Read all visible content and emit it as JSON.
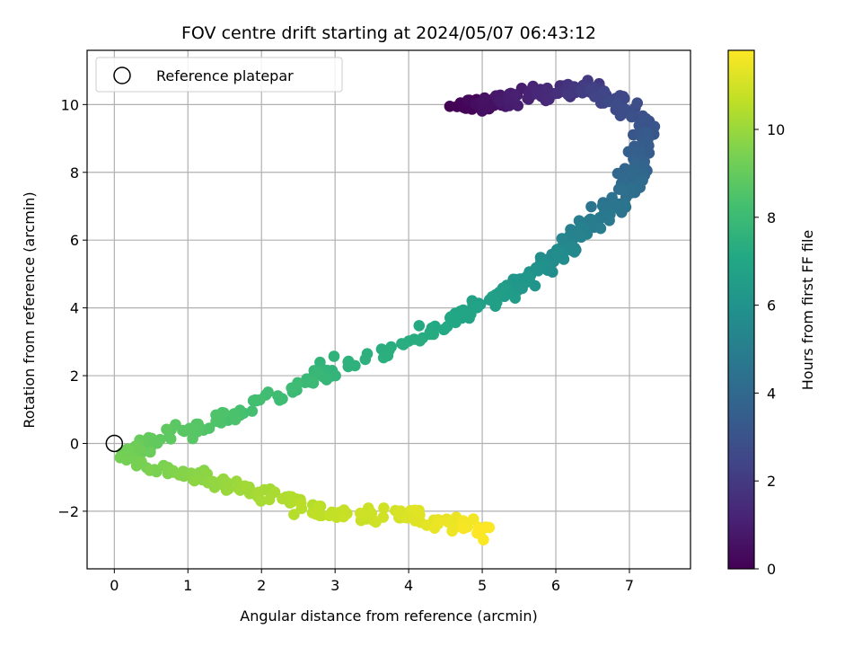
{
  "chart_data": {
    "type": "scatter",
    "title": "FOV centre drift starting at 2024/05/07 06:43:12",
    "xlabel": "Angular distance from reference (arcmin)",
    "ylabel": "Rotation from reference (arcmin)",
    "xlim": [
      -0.37,
      7.83
    ],
    "ylim": [
      -3.7,
      11.6
    ],
    "xticks": [
      0,
      1,
      2,
      3,
      4,
      5,
      6,
      7
    ],
    "xtick_labels": [
      "0",
      "1",
      "2",
      "3",
      "4",
      "5",
      "6",
      "7"
    ],
    "yticks": [
      -2,
      0,
      2,
      4,
      6,
      8,
      10
    ],
    "ytick_labels": [
      "−2",
      "0",
      "2",
      "4",
      "6",
      "8",
      "10"
    ],
    "grid": true,
    "legend": {
      "placement": "upper-left",
      "entries": [
        "Reference platepar"
      ]
    },
    "reference_point": {
      "x": 0,
      "y": 0,
      "label": "Reference platepar"
    },
    "colormap": "viridis",
    "colorbar": {
      "label": "Hours from first FF file",
      "range": [
        0,
        11.8
      ],
      "ticks": [
        0,
        2,
        4,
        6,
        8,
        10
      ],
      "tick_labels": [
        "0",
        "2",
        "4",
        "6",
        "8",
        "10"
      ]
    },
    "series_keyframes": [
      {
        "t": 0.0,
        "x": 4.7,
        "y": 9.95
      },
      {
        "t": 0.5,
        "x": 5.1,
        "y": 10.1
      },
      {
        "t": 1.0,
        "x": 5.5,
        "y": 10.3
      },
      {
        "t": 1.5,
        "x": 6.0,
        "y": 10.35
      },
      {
        "t": 2.0,
        "x": 6.4,
        "y": 10.5
      },
      {
        "t": 2.5,
        "x": 6.8,
        "y": 10.1
      },
      {
        "t": 3.0,
        "x": 7.2,
        "y": 9.5
      },
      {
        "t": 3.5,
        "x": 7.15,
        "y": 8.6
      },
      {
        "t": 4.0,
        "x": 7.05,
        "y": 7.8
      },
      {
        "t": 4.5,
        "x": 6.8,
        "y": 7.0
      },
      {
        "t": 5.0,
        "x": 6.4,
        "y": 6.4
      },
      {
        "t": 5.5,
        "x": 6.1,
        "y": 5.6
      },
      {
        "t": 6.0,
        "x": 5.7,
        "y": 5.0
      },
      {
        "t": 6.5,
        "x": 5.2,
        "y": 4.4
      },
      {
        "t": 7.0,
        "x": 4.6,
        "y": 3.6
      },
      {
        "t": 7.3,
        "x": 4.0,
        "y": 3.0
      },
      {
        "t": 7.6,
        "x": 3.0,
        "y": 2.3
      },
      {
        "t": 8.0,
        "x": 2.5,
        "y": 1.7
      },
      {
        "t": 8.3,
        "x": 1.7,
        "y": 0.9
      },
      {
        "t": 8.7,
        "x": 1.0,
        "y": 0.35
      },
      {
        "t": 9.0,
        "x": 0.4,
        "y": 0.05
      },
      {
        "t": 9.3,
        "x": 0.15,
        "y": -0.5
      },
      {
        "t": 9.6,
        "x": 0.9,
        "y": -0.9
      },
      {
        "t": 10.0,
        "x": 1.6,
        "y": -1.3
      },
      {
        "t": 10.3,
        "x": 2.2,
        "y": -1.6
      },
      {
        "t": 10.7,
        "x": 3.0,
        "y": -2.1
      },
      {
        "t": 11.1,
        "x": 3.9,
        "y": -2.1
      },
      {
        "t": 11.5,
        "x": 4.6,
        "y": -2.4
      },
      {
        "t": 11.8,
        "x": 5.1,
        "y": -2.6
      }
    ],
    "point_count": 600
  }
}
